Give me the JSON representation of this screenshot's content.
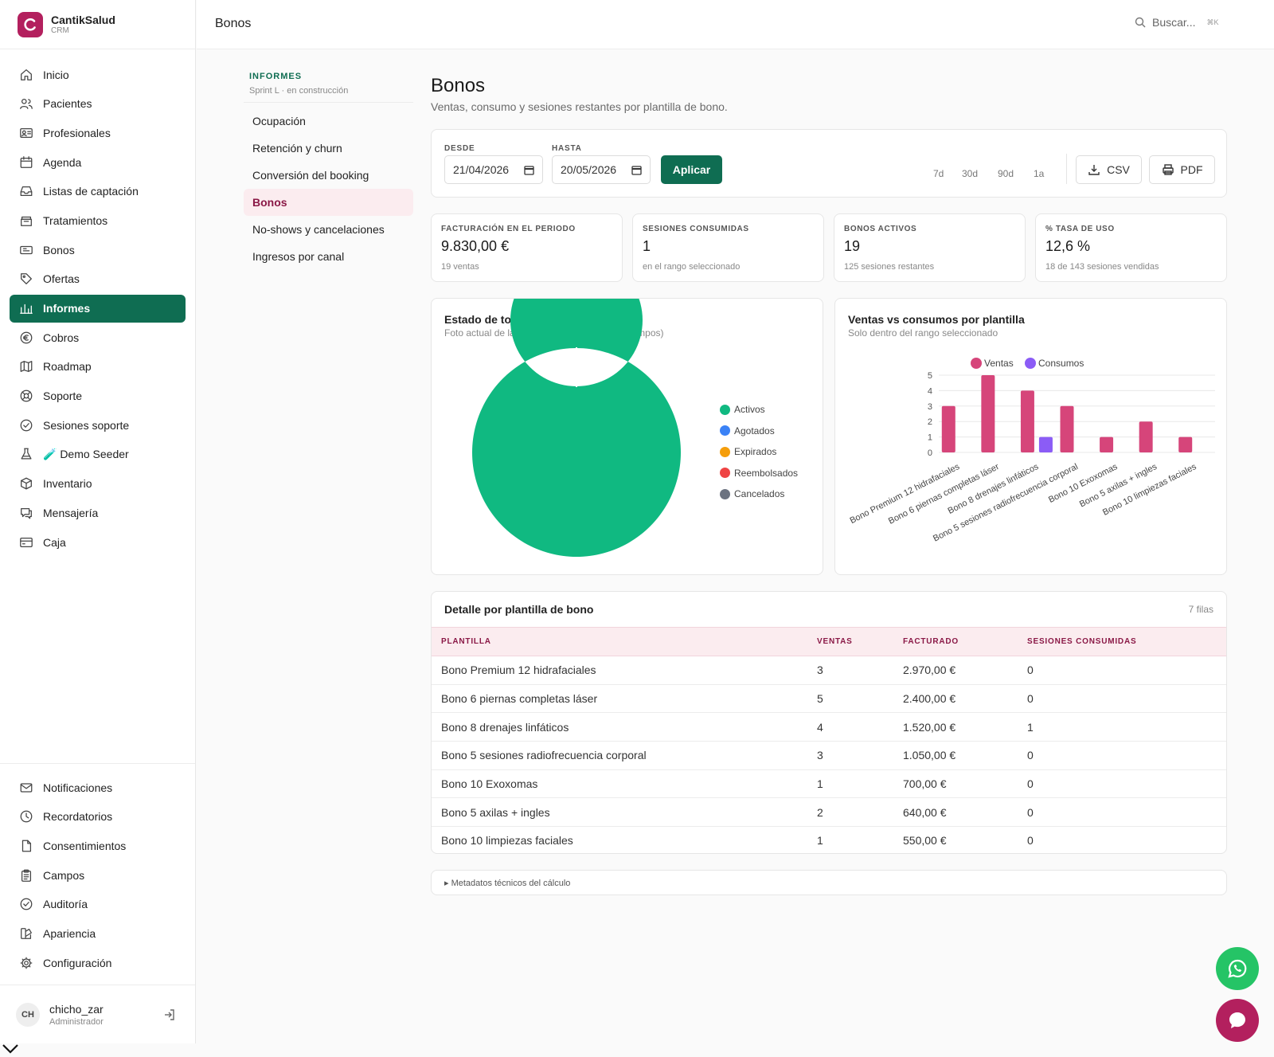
{
  "brand": {
    "name": "CantikSalud",
    "sub": "CRM"
  },
  "sidebar": {
    "items": [
      {
        "label": "Inicio",
        "icon": "home-icon"
      },
      {
        "label": "Pacientes",
        "icon": "users-icon"
      },
      {
        "label": "Profesionales",
        "icon": "id-card-icon"
      },
      {
        "label": "Agenda",
        "icon": "calendar-icon"
      },
      {
        "label": "Listas de captación",
        "icon": "inbox-icon"
      },
      {
        "label": "Tratamientos",
        "icon": "stack-icon"
      },
      {
        "label": "Bonos",
        "icon": "ticket-icon"
      },
      {
        "label": "Ofertas",
        "icon": "tag-icon"
      },
      {
        "label": "Informes",
        "icon": "bar-chart-icon",
        "active": true
      },
      {
        "label": "Cobros",
        "icon": "euro-icon"
      },
      {
        "label": "Roadmap",
        "icon": "map-icon"
      },
      {
        "label": "Soporte",
        "icon": "lifebuoy-icon"
      },
      {
        "label": "Sesiones soporte",
        "icon": "shield-check-icon"
      },
      {
        "label": "🧪 Demo Seeder",
        "icon": "flask-icon"
      },
      {
        "label": "Inventario",
        "icon": "box-icon"
      },
      {
        "label": "Mensajería",
        "icon": "chat-icon"
      },
      {
        "label": "Caja",
        "icon": "cash-register-icon"
      }
    ],
    "bottom_items": [
      {
        "label": "Notificaciones",
        "icon": "mail-icon"
      },
      {
        "label": "Recordatorios",
        "icon": "clock-icon"
      },
      {
        "label": "Consentimientos",
        "icon": "file-icon"
      },
      {
        "label": "Campos",
        "icon": "clipboard-icon"
      },
      {
        "label": "Auditoría",
        "icon": "check-circle-icon"
      },
      {
        "label": "Apariencia",
        "icon": "palette-icon"
      },
      {
        "label": "Configuración",
        "icon": "gear-icon"
      }
    ],
    "user": {
      "initials": "CH",
      "name": "chicho_zar",
      "role": "Administrador"
    }
  },
  "topbar": {
    "title": "Bonos",
    "search_placeholder": "Buscar...",
    "shortcut": "⌘K"
  },
  "reports_nav": {
    "title": "INFORMES",
    "subtitle": "Sprint L · en construcción",
    "items": [
      "Ocupación",
      "Retención y churn",
      "Conversión del booking",
      "Bonos",
      "No-shows y cancelaciones",
      "Ingresos por canal"
    ],
    "active_index": 3
  },
  "page": {
    "title": "Bonos",
    "subtitle": "Ventas, consumo y sesiones restantes por plantilla de bono."
  },
  "filters": {
    "from_label": "DESDE",
    "from_value": "21/04/2026",
    "to_label": "HASTA",
    "to_value": "20/05/2026",
    "apply_label": "Aplicar",
    "ranges": [
      "7d",
      "30d",
      "90d",
      "1a"
    ],
    "csv_label": "CSV",
    "pdf_label": "PDF"
  },
  "kpis": [
    {
      "label": "FACTURACIÓN EN EL PERIODO",
      "value": "9.830,00 €",
      "sub": "19 ventas"
    },
    {
      "label": "SESIONES CONSUMIDAS",
      "value": "1",
      "sub": "en el rango seleccionado"
    },
    {
      "label": "BONOS ACTIVOS",
      "value": "19",
      "sub": "125 sesiones restantes"
    },
    {
      "label": "% TASA DE USO",
      "value": "12,6 %",
      "sub": "18 de 143 sesiones vendidas"
    }
  ],
  "chart_data": [
    {
      "type": "pie",
      "title": "Estado de todos los bonos",
      "subtitle": "Foto actual de la base de bonos (todos los tiempos)",
      "categories": [
        "Activos",
        "Agotados",
        "Expirados",
        "Reembolsados",
        "Cancelados"
      ],
      "values": [
        19,
        0,
        0,
        0,
        0
      ],
      "colors": [
        "#10b981",
        "#3b82f6",
        "#f59e0b",
        "#ef4444",
        "#6b7280"
      ],
      "legend": "right"
    },
    {
      "type": "bar",
      "title": "Ventas vs consumos por plantilla",
      "subtitle": "Solo dentro del rango seleccionado",
      "categories": [
        "Bono Premium 12 hidrafaciales",
        "Bono 6 piernas completas láser",
        "Bono 8 drenajes linfáticos",
        "Bono 5 sesiones radiofrecuencia corporal",
        "Bono 10 Exoxomas",
        "Bono 5 axilas + ingles",
        "Bono 10 limpiezas faciales"
      ],
      "series": [
        {
          "name": "Ventas",
          "values": [
            3,
            5,
            4,
            3,
            1,
            2,
            1
          ],
          "color": "#d6457a"
        },
        {
          "name": "Consumos",
          "values": [
            0,
            0,
            1,
            0,
            0,
            0,
            0
          ],
          "color": "#8b5cf6"
        }
      ],
      "yticks": [
        0,
        1,
        2,
        3,
        4,
        5
      ],
      "ylim": [
        0,
        5
      ],
      "grid": true,
      "legend": "top"
    }
  ],
  "table": {
    "title": "Detalle por plantilla de bono",
    "count": "7 filas",
    "headers": [
      "PLANTILLA",
      "VENTAS",
      "FACTURADO",
      "SESIONES CONSUMIDAS"
    ],
    "rows": [
      [
        "Bono Premium 12 hidrafaciales",
        "3",
        "2.970,00 €",
        "0"
      ],
      [
        "Bono 6 piernas completas láser",
        "5",
        "2.400,00 €",
        "0"
      ],
      [
        "Bono 8 drenajes linfáticos",
        "4",
        "1.520,00 €",
        "1"
      ],
      [
        "Bono 5 sesiones radiofrecuencia corporal",
        "3",
        "1.050,00 €",
        "0"
      ],
      [
        "Bono 10 Exoxomas",
        "1",
        "700,00 €",
        "0"
      ],
      [
        "Bono 5 axilas + ingles",
        "2",
        "640,00 €",
        "0"
      ],
      [
        "Bono 10 limpiezas faciales",
        "1",
        "550,00 €",
        "0"
      ]
    ]
  },
  "metadata_toggle": "▸ Metadatos técnicos del cálculo"
}
